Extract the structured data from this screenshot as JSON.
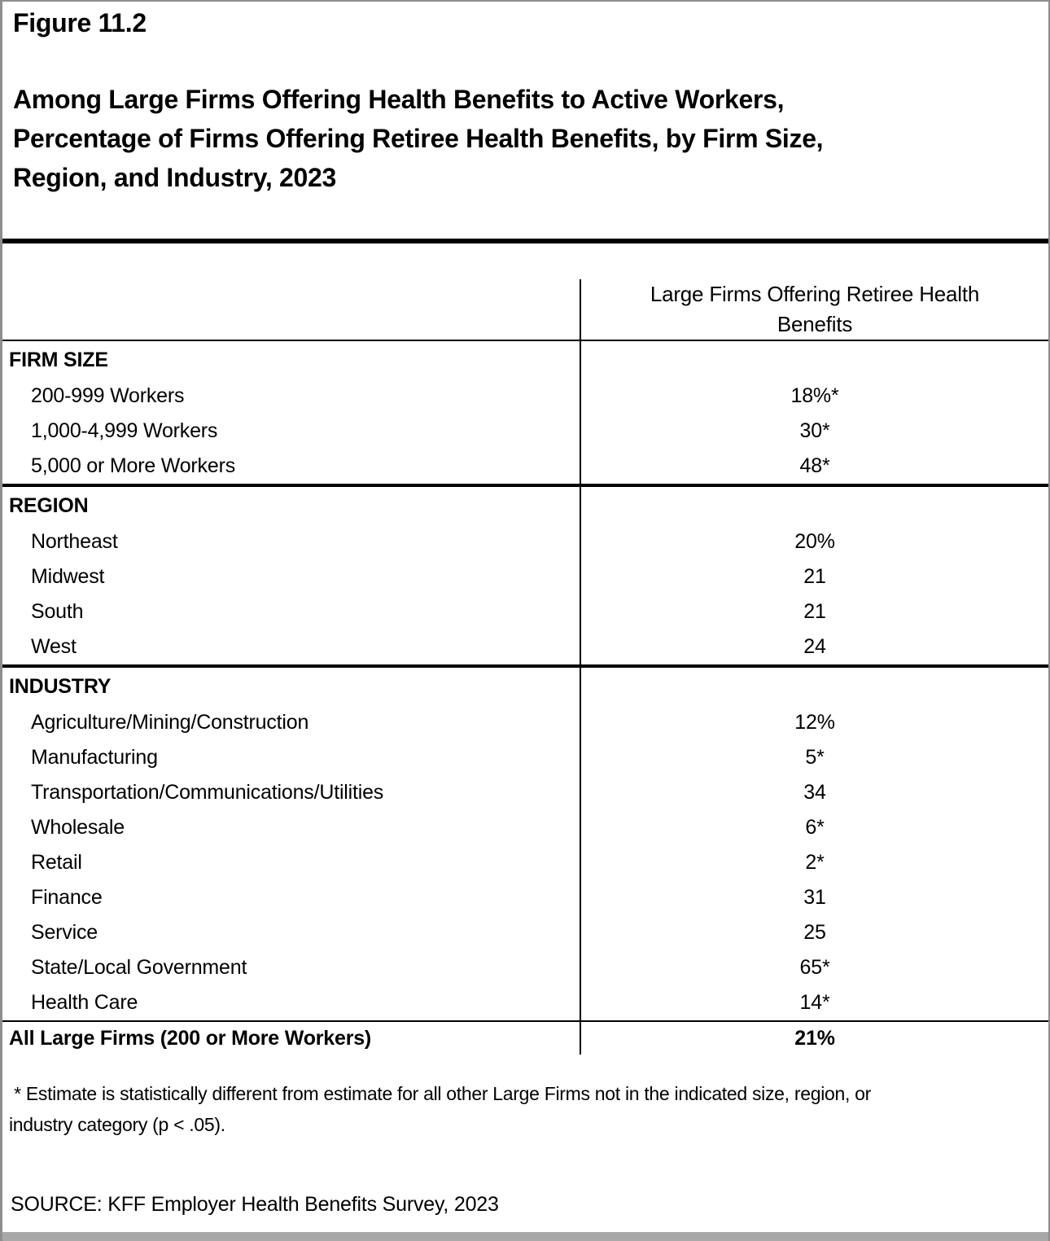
{
  "page": {
    "figure_label": "Figure 11.2",
    "title": "Among Large Firms Offering Health Benefits to Active Workers,\nPercentage of Firms Offering Retiree Health Benefits, by Firm Size,\nRegion, and Industry, 2023",
    "footnote": " * Estimate is statistically different from estimate for all other Large Firms not in the indicated size, region, or\nindustry category (p < .05).",
    "source": "SOURCE: KFF Employer Health Benefits Survey, 2023"
  },
  "table": {
    "value_column_header": "Large Firms Offering Retiree Health\nBenefits",
    "sections": [
      {
        "header": "FIRM SIZE",
        "rows": [
          {
            "label": "200-999 Workers",
            "value": "18%*"
          },
          {
            "label": "1,000-4,999 Workers",
            "value": "30*"
          },
          {
            "label": "5,000 or More Workers",
            "value": "48*"
          }
        ]
      },
      {
        "header": "REGION",
        "rows": [
          {
            "label": "Northeast",
            "value": "20%"
          },
          {
            "label": "Midwest",
            "value": "21"
          },
          {
            "label": "South",
            "value": "21"
          },
          {
            "label": "West",
            "value": "24"
          }
        ]
      },
      {
        "header": "INDUSTRY",
        "rows": [
          {
            "label": "Agriculture/Mining/Construction",
            "value": "12%"
          },
          {
            "label": "Manufacturing",
            "value": "5*"
          },
          {
            "label": "Transportation/Communications/Utilities",
            "value": "34"
          },
          {
            "label": "Wholesale",
            "value": "6*"
          },
          {
            "label": "Retail",
            "value": "2*"
          },
          {
            "label": "Finance",
            "value": "31"
          },
          {
            "label": "Service",
            "value": "25"
          },
          {
            "label": "State/Local Government",
            "value": "65*"
          },
          {
            "label": "Health Care",
            "value": "14*"
          }
        ]
      }
    ],
    "total_row": {
      "label": "All Large Firms (200 or More Workers)",
      "value": "21%"
    }
  },
  "colors": {
    "background": "#ffffff",
    "text": "#000000",
    "rule": "#000000",
    "page_border": "#8e8e8e",
    "bottom_bar": "#a8a8a8"
  }
}
